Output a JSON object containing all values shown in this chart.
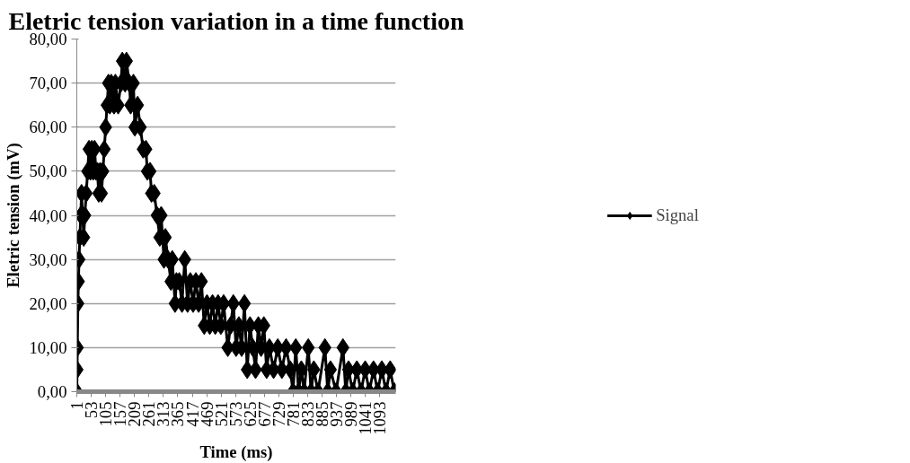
{
  "chart_data": {
    "type": "line",
    "title": "Eletric tension variation in a time function",
    "xlabel": "Time (ms)",
    "ylabel": "Eletric tension (mV)",
    "xlim": [
      1,
      1150
    ],
    "xticks": [
      1,
      53,
      105,
      157,
      209,
      261,
      313,
      365,
      417,
      469,
      521,
      573,
      625,
      677,
      729,
      781,
      833,
      885,
      937,
      989,
      1041,
      1093
    ],
    "ylim": [
      0,
      80
    ],
    "yticks": [
      {
        "value": 0,
        "label": "0,00"
      },
      {
        "value": 10,
        "label": "10,00"
      },
      {
        "value": 20,
        "label": "20,00"
      },
      {
        "value": 30,
        "label": "30,00"
      },
      {
        "value": 40,
        "label": "40,00"
      },
      {
        "value": 50,
        "label": "50,00"
      },
      {
        "value": 60,
        "label": "60,00"
      },
      {
        "value": 70,
        "label": "70,00"
      },
      {
        "value": 80,
        "label": "80,00"
      }
    ],
    "grid": "y",
    "legend": "right",
    "marker": "diamond",
    "line_style": "solid",
    "series": [
      {
        "name": "Signal",
        "color": "#000000",
        "x": [
          1,
          2,
          3,
          5,
          7,
          9,
          12,
          15,
          18,
          22,
          26,
          30,
          35,
          40,
          45,
          50,
          55,
          60,
          65,
          70,
          75,
          80,
          85,
          90,
          95,
          100,
          105,
          110,
          115,
          120,
          125,
          135,
          140,
          150,
          160,
          165,
          175,
          180,
          190,
          195,
          205,
          210,
          220,
          230,
          240,
          250,
          255,
          265,
          270,
          280,
          290,
          300,
          305,
          315,
          320,
          330,
          340,
          345,
          355,
          360,
          370,
          380,
          390,
          400,
          410,
          420,
          430,
          440,
          450,
          460,
          470,
          480,
          490,
          500,
          510,
          520,
          530,
          545,
          555,
          565,
          575,
          585,
          595,
          605,
          615,
          625,
          635,
          645,
          655,
          665,
          675,
          685,
          695,
          710,
          725,
          740,
          755,
          770,
          780,
          790,
          800,
          810,
          820,
          835,
          845,
          855,
          870,
          895,
          905,
          915,
          935,
          960,
          970,
          980,
          995,
          1010,
          1025,
          1040,
          1055,
          1070,
          1085,
          1100,
          1115,
          1130,
          1145
        ],
        "values": [
          0,
          5,
          10,
          20,
          25,
          30,
          35,
          40,
          45,
          40,
          35,
          40,
          45,
          50,
          55,
          50,
          55,
          50,
          55,
          50,
          50,
          45,
          50,
          45,
          50,
          55,
          60,
          65,
          70,
          65,
          70,
          65,
          70,
          65,
          70,
          75,
          70,
          75,
          70,
          65,
          70,
          60,
          65,
          60,
          55,
          55,
          50,
          50,
          45,
          45,
          40,
          35,
          40,
          30,
          35,
          30,
          25,
          30,
          20,
          25,
          25,
          20,
          30,
          20,
          25,
          20,
          25,
          20,
          25,
          15,
          20,
          15,
          20,
          15,
          20,
          15,
          20,
          10,
          15,
          20,
          10,
          15,
          10,
          20,
          5,
          15,
          10,
          5,
          15,
          10,
          15,
          5,
          10,
          5,
          10,
          5,
          10,
          5,
          0,
          10,
          0,
          5,
          0,
          10,
          0,
          5,
          0,
          10,
          0,
          5,
          0,
          10,
          0,
          5,
          0,
          5,
          0,
          5,
          0,
          5,
          0,
          5,
          0,
          5,
          0
        ]
      }
    ]
  }
}
